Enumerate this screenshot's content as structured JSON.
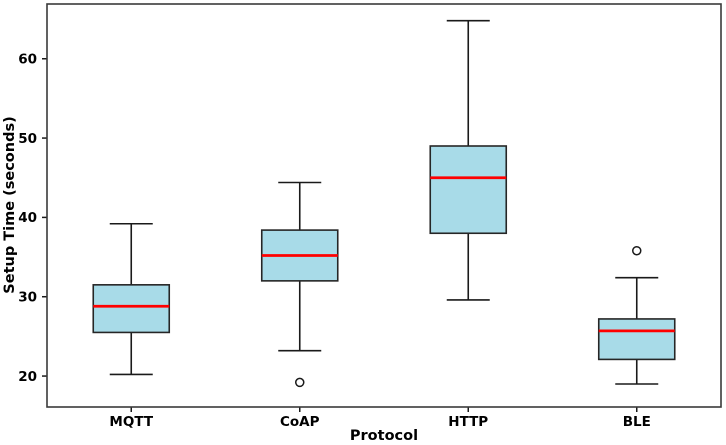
{
  "figure": {
    "background_color": "#ffffff"
  },
  "chart_data": {
    "type": "boxplot",
    "title": "",
    "xlabel": "Protocol",
    "ylabel": "Setup Time (seconds)",
    "categories": [
      "MQTT",
      "CoAP",
      "HTTP",
      "BLE"
    ],
    "yticks": [
      20,
      30,
      40,
      50,
      60
    ],
    "ylim": [
      16.1,
      66.9
    ],
    "grid": false,
    "legend": null,
    "series": [
      {
        "name": "MQTT",
        "whisker_low": 20.2,
        "q1": 25.5,
        "median": 28.8,
        "q3": 31.5,
        "whisker_high": 39.2,
        "outliers": []
      },
      {
        "name": "CoAP",
        "whisker_low": 23.2,
        "q1": 32.0,
        "median": 35.2,
        "q3": 38.4,
        "whisker_high": 44.4,
        "outliers": [
          19.2
        ]
      },
      {
        "name": "HTTP",
        "whisker_low": 29.6,
        "q1": 38.0,
        "median": 45.0,
        "q3": 49.0,
        "whisker_high": 64.8,
        "outliers": []
      },
      {
        "name": "BLE",
        "whisker_low": 19.0,
        "q1": 22.1,
        "median": 25.7,
        "q3": 27.2,
        "whisker_high": 32.4,
        "outliers": [
          35.8
        ]
      }
    ],
    "style": {
      "box_fill": "#A8DBE8",
      "box_edge": "#262626",
      "median_color": "#ff0000",
      "whisker_color": "#1a1a1a",
      "outlier_fill": "#ffffff",
      "outlier_edge": "#1a1a1a",
      "spine_color": "#3a3a3a",
      "tick_color": "#1a1a1a",
      "label_color": "#000000"
    }
  }
}
